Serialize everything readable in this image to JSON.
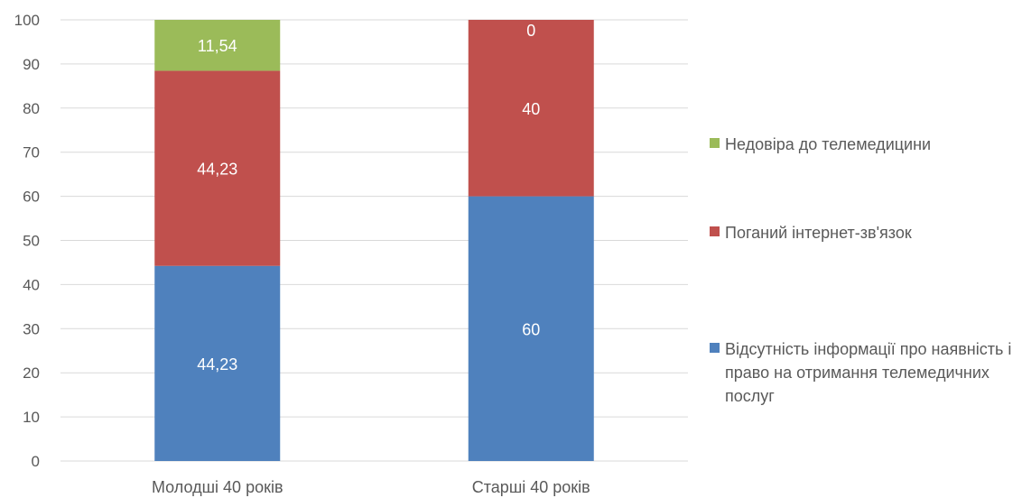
{
  "chart_data": {
    "type": "bar",
    "stacked": true,
    "categories": [
      "Молодші 40 років",
      "Старші 40 років"
    ],
    "series": [
      {
        "name": "Відсутність інформації про наявність і право на отримання телемедичних послуг",
        "values": [
          44.23,
          60
        ],
        "labels": [
          "44,23",
          "60"
        ],
        "color": "#4f81bd"
      },
      {
        "name": "Поганий інтернет-зв'язок",
        "values": [
          44.23,
          40
        ],
        "labels": [
          "44,23",
          "40"
        ],
        "color": "#c0504d"
      },
      {
        "name": "Недовіра до телемедицини",
        "values": [
          11.54,
          0
        ],
        "labels": [
          "11,54",
          "0"
        ],
        "color": "#9bbb59"
      }
    ],
    "ylim": [
      0,
      100
    ],
    "yticks": [
      "0",
      "10",
      "20",
      "30",
      "40",
      "50",
      "60",
      "70",
      "80",
      "90",
      "100"
    ],
    "grid": true,
    "legend_position": "right",
    "title": "",
    "xlabel": "",
    "ylabel": ""
  },
  "legend": {
    "items": [
      {
        "label": "Недовіра до телемедицини",
        "color": "#9bbb59"
      },
      {
        "label": "Поганий інтернет-зв'язок",
        "color": "#c0504d"
      },
      {
        "label": "Відсутність інформації про наявність і право на отримання телемедичних послуг",
        "color": "#4f81bd"
      }
    ]
  }
}
